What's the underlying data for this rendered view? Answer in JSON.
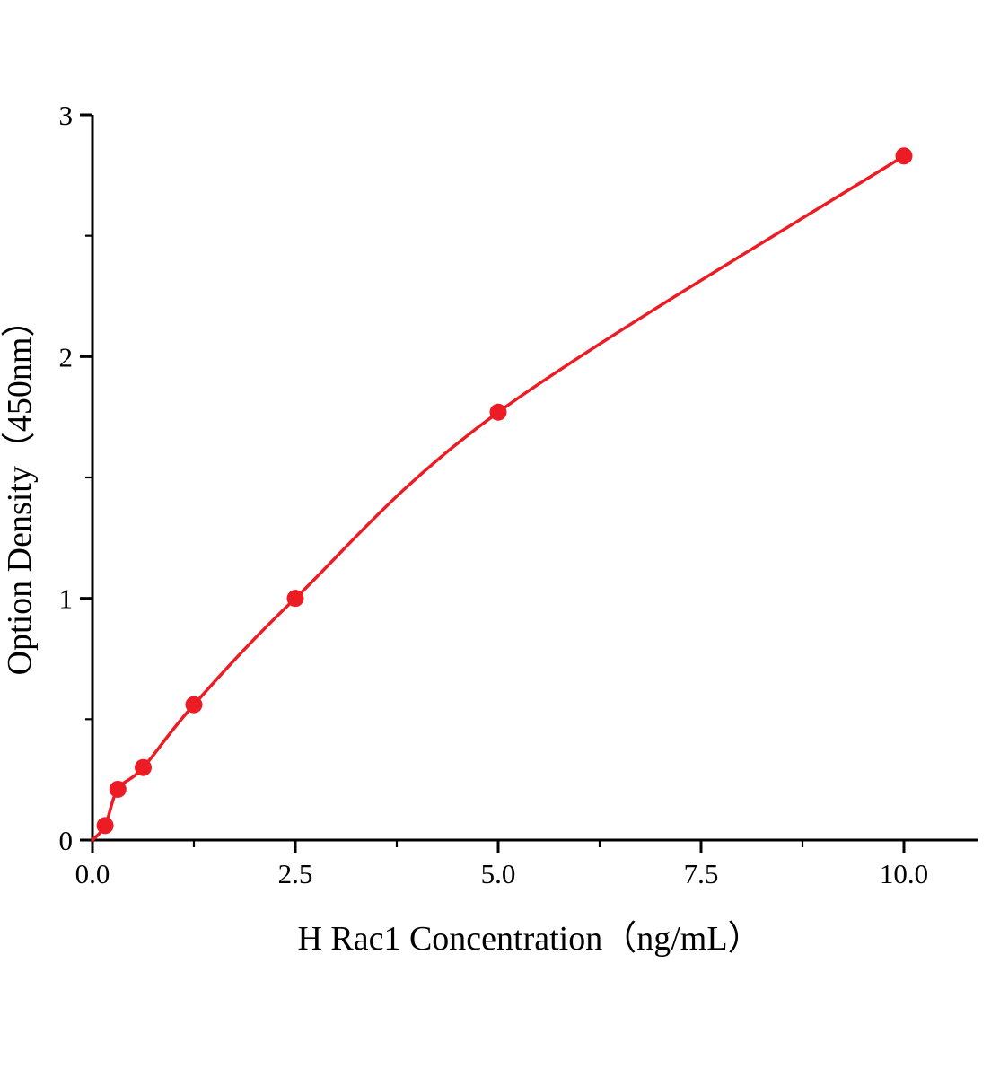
{
  "chart_data": {
    "type": "scatter",
    "subtype": "standard-curve-with-fitted-line",
    "title": "",
    "xlabel": "H Rac1 Concentration（ng/mL）",
    "ylabel": "Option Density（450nm）",
    "x_ticks": [
      0.0,
      2.5,
      5.0,
      7.5,
      10.0
    ],
    "x_tick_labels": [
      "0.0",
      "2.5",
      "5.0",
      "7.5",
      "10.0"
    ],
    "x_minor_ticks": [
      1.25,
      3.75,
      6.25,
      8.75
    ],
    "y_ticks": [
      0,
      1,
      2,
      3
    ],
    "y_tick_labels": [
      "0",
      "1",
      "2",
      "3"
    ],
    "y_minor_ticks": [
      0.5,
      1.5,
      2.5
    ],
    "xlim": [
      0,
      10.9
    ],
    "ylim": [
      0,
      3
    ],
    "grid": false,
    "legend": "none",
    "line_color": "#ed1c24",
    "marker_color": "#ed1c24",
    "axis_color": "#000000",
    "curve_origin_anchor": {
      "x": 0,
      "y": 0
    },
    "points": [
      {
        "x": 0.156,
        "y": 0.06
      },
      {
        "x": 0.313,
        "y": 0.21
      },
      {
        "x": 0.625,
        "y": 0.3
      },
      {
        "x": 1.25,
        "y": 0.56
      },
      {
        "x": 2.5,
        "y": 1.0
      },
      {
        "x": 5.0,
        "y": 1.77
      },
      {
        "x": 10.0,
        "y": 2.83
      }
    ]
  }
}
